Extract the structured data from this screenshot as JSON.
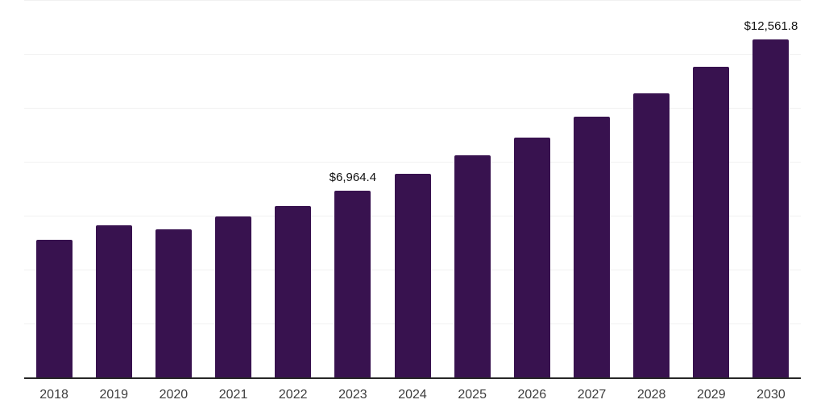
{
  "chart_data": {
    "type": "bar",
    "title": "",
    "xlabel": "",
    "ylabel": "",
    "categories": [
      "2018",
      "2019",
      "2020",
      "2021",
      "2022",
      "2023",
      "2024",
      "2025",
      "2026",
      "2027",
      "2028",
      "2029",
      "2030"
    ],
    "values": [
      5123,
      5662,
      5533,
      5991,
      6400,
      6964.4,
      7597,
      8255,
      8913,
      9691,
      10558,
      11545,
      12561.8
    ],
    "value_labels": {
      "2023": "$6,964.4",
      "2030": "$12,561.8"
    },
    "ylim": [
      0,
      14000
    ],
    "gridline_interval": 2000,
    "y_tick_labels_visible": false,
    "grid": "horizontal",
    "legend": "none",
    "colors": {
      "bar": "#38124F",
      "gridline": "#f1f1f1",
      "axis_line": "#262626",
      "value_label": "#111111",
      "tick_label": "#3d3d3d",
      "background": "#ffffff"
    }
  }
}
